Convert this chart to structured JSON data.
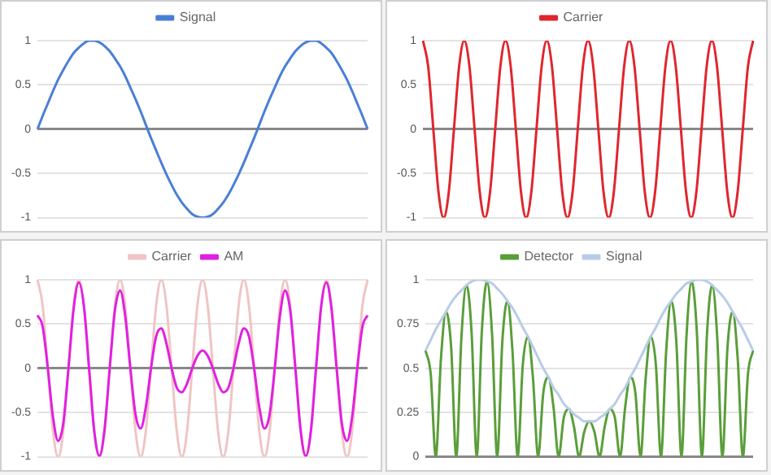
{
  "chart_data": [
    {
      "type": "line",
      "legend": "top",
      "grid": "y",
      "tick_labels": "y",
      "marker": "none",
      "ylim": [
        -1,
        1
      ],
      "yticks": [
        -1,
        -0.5,
        0,
        0.5,
        1
      ],
      "categories": [
        null,
        null,
        null,
        null,
        null,
        null,
        null,
        null,
        null,
        null,
        null,
        null,
        null,
        null,
        null,
        null,
        null,
        null,
        null,
        null,
        null,
        null,
        null,
        null,
        null,
        null,
        null,
        null,
        null,
        null,
        null,
        null,
        null,
        null,
        null,
        null,
        null,
        null,
        null,
        null,
        null,
        null,
        null,
        null,
        null,
        null,
        null,
        null,
        null,
        null,
        null,
        null,
        null,
        null,
        null,
        null,
        null,
        null,
        null,
        null,
        null,
        null,
        null,
        null,
        null
      ],
      "series": [
        {
          "name": "Signal",
          "color": "#4a7fd6",
          "values": [
            0,
            0.15,
            0.29,
            0.43,
            0.56,
            0.67,
            0.77,
            0.86,
            0.92,
            0.97,
            1,
            1,
            0.98,
            0.94,
            0.88,
            0.8,
            0.71,
            0.6,
            0.47,
            0.34,
            0.2,
            0.05,
            -0.1,
            -0.24,
            -0.38,
            -0.51,
            -0.63,
            -0.74,
            -0.83,
            -0.9,
            -0.96,
            -0.99,
            -1,
            -0.99,
            -0.96,
            -0.9,
            -0.83,
            -0.74,
            -0.63,
            -0.51,
            -0.38,
            -0.24,
            -0.1,
            0.05,
            0.2,
            0.34,
            0.47,
            0.6,
            0.71,
            0.8,
            0.88,
            0.94,
            0.98,
            1,
            1,
            0.97,
            0.92,
            0.86,
            0.77,
            0.67,
            0.56,
            0.43,
            0.29,
            0.15,
            0
          ]
        }
      ]
    },
    {
      "type": "line",
      "legend": "top",
      "grid": "y",
      "tick_labels": "y",
      "marker": "none",
      "ylim": [
        -1,
        1
      ],
      "yticks": [
        -1,
        -0.5,
        0,
        0.5,
        1
      ],
      "categories": [
        null,
        null,
        null,
        null,
        null,
        null,
        null,
        null,
        null,
        null,
        null,
        null,
        null,
        null,
        null,
        null,
        null,
        null,
        null,
        null,
        null,
        null,
        null,
        null,
        null,
        null,
        null,
        null,
        null,
        null,
        null,
        null,
        null,
        null,
        null,
        null,
        null,
        null,
        null,
        null,
        null,
        null,
        null,
        null,
        null,
        null,
        null,
        null,
        null,
        null,
        null,
        null,
        null,
        null,
        null,
        null,
        null,
        null,
        null,
        null,
        null,
        null,
        null,
        null,
        null
      ],
      "series": [
        {
          "name": "Carrier",
          "color": "#e0262d",
          "values": [
            1,
            0.71,
            0,
            -0.71,
            -1,
            -0.71,
            0,
            0.71,
            1,
            0.71,
            0,
            -0.71,
            -1,
            -0.71,
            0,
            0.71,
            1,
            0.71,
            0,
            -0.71,
            -1,
            -0.71,
            0,
            0.71,
            1,
            0.71,
            0,
            -0.71,
            -1,
            -0.71,
            0,
            0.71,
            1,
            0.71,
            0,
            -0.71,
            -1,
            -0.71,
            0,
            0.71,
            1,
            0.71,
            0,
            -0.71,
            -1,
            -0.71,
            0,
            0.71,
            1,
            0.71,
            0,
            -0.71,
            -1,
            -0.71,
            0,
            0.71,
            1,
            0.71,
            0,
            -0.71,
            -1,
            -0.71,
            0,
            0.71,
            1
          ]
        }
      ]
    },
    {
      "type": "line",
      "legend": "top",
      "grid": "y",
      "tick_labels": "y",
      "marker": "none",
      "ylim": [
        -1,
        1
      ],
      "yticks": [
        -1,
        -0.5,
        0,
        0.5,
        1
      ],
      "categories": [
        null,
        null,
        null,
        null,
        null,
        null,
        null,
        null,
        null,
        null,
        null,
        null,
        null,
        null,
        null,
        null,
        null,
        null,
        null,
        null,
        null,
        null,
        null,
        null,
        null,
        null,
        null,
        null,
        null,
        null,
        null,
        null,
        null,
        null,
        null,
        null,
        null,
        null,
        null,
        null,
        null,
        null,
        null,
        null,
        null,
        null,
        null,
        null,
        null,
        null,
        null,
        null,
        null,
        null,
        null,
        null,
        null,
        null,
        null,
        null,
        null,
        null,
        null,
        null,
        null
      ],
      "series": [
        {
          "name": "Carrier",
          "color": "#f0c4c4",
          "values": [
            1,
            0.71,
            0,
            -0.71,
            -1,
            -0.71,
            0,
            0.71,
            1,
            0.71,
            0,
            -0.71,
            -1,
            -0.71,
            0,
            0.71,
            1,
            0.71,
            0,
            -0.71,
            -1,
            -0.71,
            0,
            0.71,
            1,
            0.71,
            0,
            -0.71,
            -1,
            -0.71,
            0,
            0.71,
            1,
            0.71,
            0,
            -0.71,
            -1,
            -0.71,
            0,
            0.71,
            1,
            0.71,
            0,
            -0.71,
            -1,
            -0.71,
            0,
            0.71,
            1,
            0.71,
            0,
            -0.71,
            -1,
            -0.71,
            0,
            0.71,
            1,
            0.71,
            0,
            -0.71,
            -1,
            -0.71,
            0,
            0.71,
            1
          ]
        },
        {
          "name": "AM",
          "color": "#e020e0",
          "values": [
            0.6,
            0.47,
            0,
            -0.55,
            -0.82,
            -0.62,
            0,
            0.67,
            0.97,
            0.7,
            0,
            -0.71,
            -0.99,
            -0.69,
            0,
            0.65,
            0.88,
            0.59,
            0,
            -0.52,
            -0.68,
            -0.44,
            0,
            0.36,
            0.45,
            0.28,
            0,
            -0.22,
            -0.27,
            -0.17,
            0,
            0.14,
            0.2,
            0.14,
            0,
            -0.17,
            -0.27,
            -0.22,
            0,
            0.28,
            0.45,
            0.36,
            0,
            -0.44,
            -0.68,
            -0.52,
            0,
            0.59,
            0.88,
            0.65,
            0,
            -0.69,
            -0.99,
            -0.71,
            0,
            0.7,
            0.97,
            0.67,
            0,
            -0.62,
            -0.82,
            -0.55,
            0,
            0.47,
            0.6
          ]
        }
      ]
    },
    {
      "type": "line",
      "legend": "top",
      "grid": "y",
      "tick_labels": "y",
      "marker": "none",
      "ylim": [
        0,
        1
      ],
      "yticks": [
        0,
        0.25,
        0.5,
        0.75,
        1
      ],
      "categories": [
        null,
        null,
        null,
        null,
        null,
        null,
        null,
        null,
        null,
        null,
        null,
        null,
        null,
        null,
        null,
        null,
        null,
        null,
        null,
        null,
        null,
        null,
        null,
        null,
        null,
        null,
        null,
        null,
        null,
        null,
        null,
        null,
        null,
        null,
        null,
        null,
        null,
        null,
        null,
        null,
        null,
        null,
        null,
        null,
        null,
        null,
        null,
        null,
        null,
        null,
        null,
        null,
        null,
        null,
        null,
        null,
        null,
        null,
        null,
        null,
        null,
        null,
        null,
        null,
        null
      ],
      "series": [
        {
          "name": "Detector",
          "color": "#5a9e3a",
          "values": [
            0.6,
            0.47,
            0,
            0.55,
            0.82,
            0.62,
            0,
            0.67,
            0.97,
            0.7,
            0,
            0.71,
            0.99,
            0.69,
            0,
            0.65,
            0.88,
            0.59,
            0,
            0.52,
            0.68,
            0.44,
            0,
            0.36,
            0.45,
            0.28,
            0,
            0.22,
            0.27,
            0.17,
            0,
            0.14,
            0.2,
            0.14,
            0,
            0.17,
            0.27,
            0.22,
            0,
            0.28,
            0.45,
            0.36,
            0,
            0.44,
            0.68,
            0.52,
            0,
            0.59,
            0.88,
            0.65,
            0,
            0.69,
            0.99,
            0.71,
            0,
            0.7,
            0.97,
            0.67,
            0,
            0.62,
            0.82,
            0.55,
            0,
            0.47,
            0.6
          ]
        },
        {
          "name": "Signal",
          "color": "#b8cce8",
          "values": [
            0.6,
            0.66,
            0.72,
            0.77,
            0.82,
            0.87,
            0.91,
            0.94,
            0.97,
            0.99,
            1,
            1,
            0.99,
            0.98,
            0.95,
            0.92,
            0.88,
            0.84,
            0.79,
            0.73,
            0.68,
            0.62,
            0.56,
            0.5,
            0.45,
            0.39,
            0.35,
            0.3,
            0.27,
            0.24,
            0.22,
            0.2,
            0.2,
            0.2,
            0.22,
            0.24,
            0.27,
            0.3,
            0.35,
            0.39,
            0.45,
            0.5,
            0.56,
            0.62,
            0.68,
            0.73,
            0.79,
            0.84,
            0.88,
            0.92,
            0.95,
            0.98,
            0.99,
            1,
            1,
            0.99,
            0.97,
            0.94,
            0.91,
            0.87,
            0.82,
            0.77,
            0.72,
            0.66,
            0.6
          ]
        }
      ]
    }
  ]
}
